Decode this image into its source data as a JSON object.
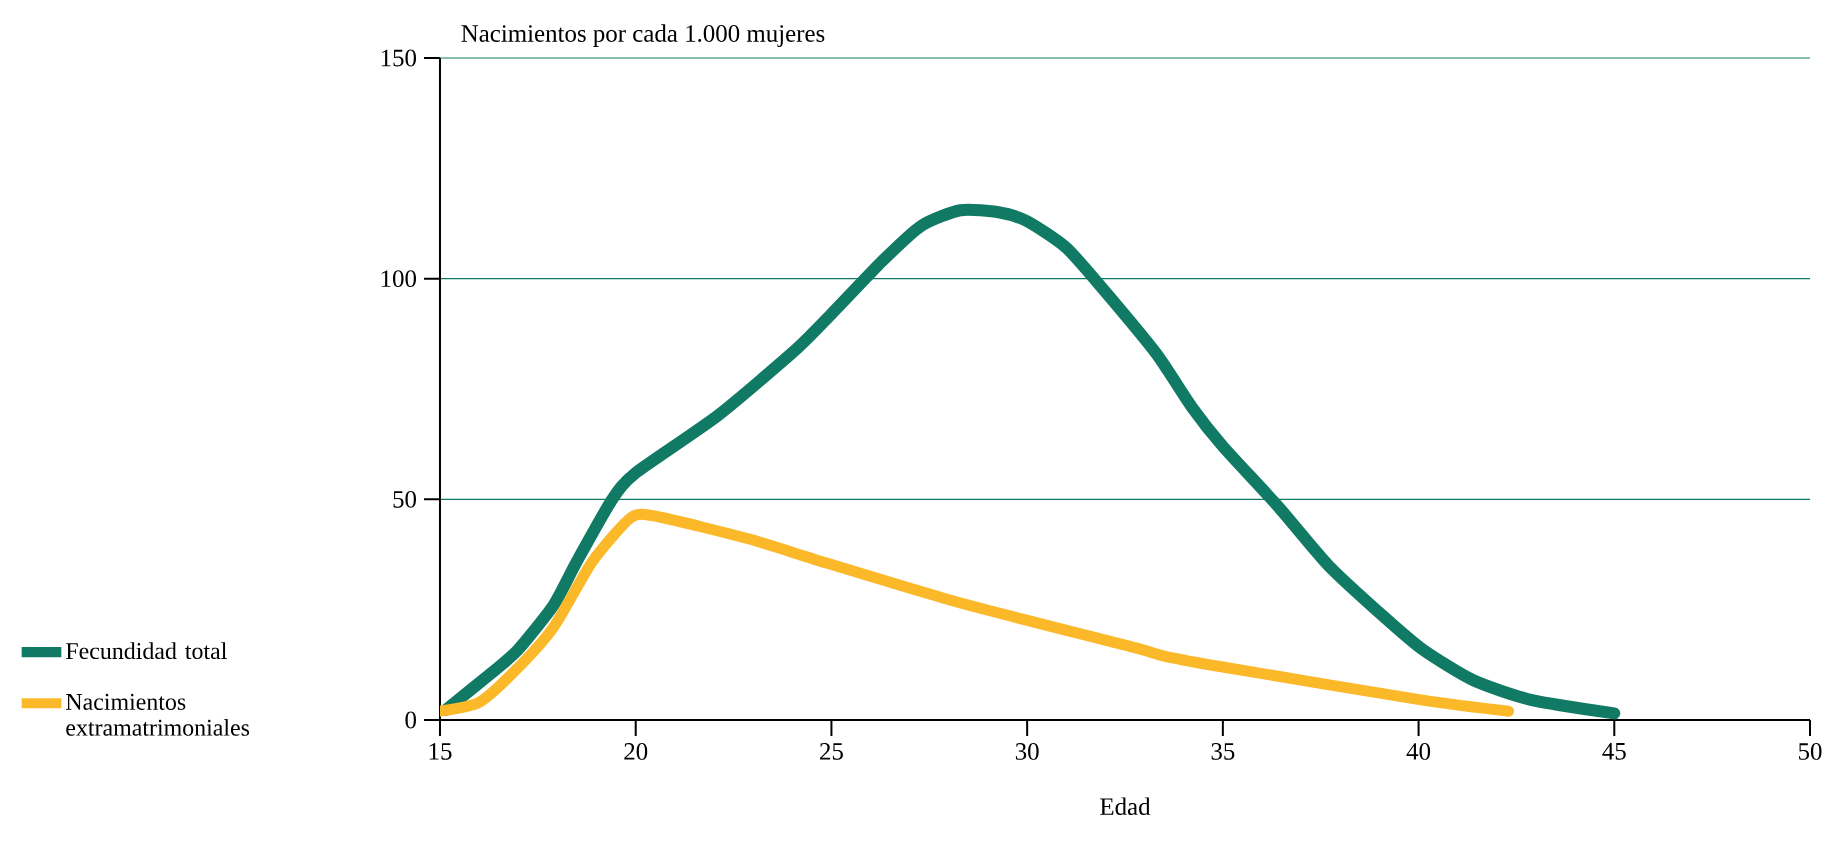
{
  "chart_data": {
    "type": "line",
    "ylabel": "Nacimientos por cada 1.000 mujeres",
    "xlabel": "Edad",
    "xlim": [
      15,
      50
    ],
    "xticks": [
      15,
      20,
      25,
      30,
      35,
      40,
      45,
      50
    ],
    "ylim": [
      0,
      150
    ],
    "yticks": [
      0,
      50,
      100,
      150
    ],
    "grid": "y",
    "legend": "bottom left",
    "line_style": "solid",
    "marker": "none",
    "series": [
      {
        "name": "Fecundidad total",
        "color": "#117a65",
        "x": [
          15.15,
          16.5,
          17.0,
          17.9,
          18.5,
          19.4,
          20.0,
          22.1,
          24.1,
          25.0,
          26.3,
          27.3,
          28.3,
          29.3,
          30.0,
          31.0,
          32.0,
          33.3,
          34.2,
          35.0,
          36.4,
          37.7,
          39.1,
          40.1,
          41.4,
          42.9,
          45.0
        ],
        "values": [
          2.3,
          12,
          16,
          26,
          36,
          50,
          56,
          69,
          84,
          92,
          104,
          112,
          115.5,
          115,
          113,
          107,
          97,
          83,
          71,
          62,
          48.5,
          35,
          23.5,
          16,
          9,
          4.5,
          1.5
        ]
      },
      {
        "name": "Nacimientos extramatrimoniales",
        "color": "#fbb829",
        "x": [
          15.0,
          16.0,
          16.9,
          17.9,
          18.9,
          19.9,
          20.6,
          22.9,
          24.9,
          28.3,
          32.7,
          33.5,
          35.0,
          40.1,
          42.3
        ],
        "values": [
          2,
          4,
          11,
          21,
          36,
          46,
          46,
          41,
          35.5,
          26.5,
          16.5,
          14.5,
          12,
          4.5,
          2
        ]
      }
    ]
  }
}
